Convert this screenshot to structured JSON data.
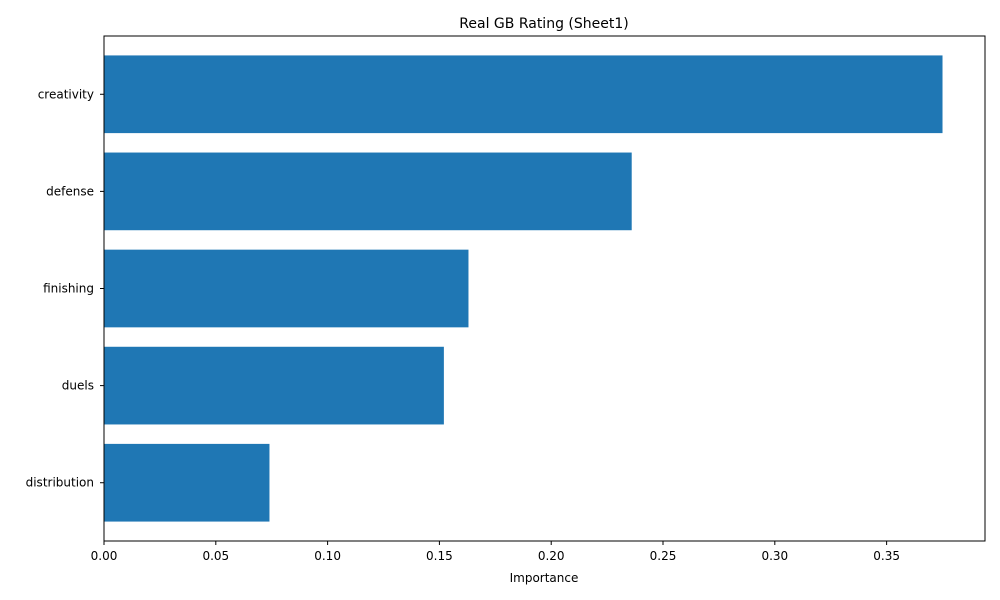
{
  "chart_data": {
    "type": "bar",
    "orientation": "horizontal",
    "title": "Real GB Rating (Sheet1)",
    "xlabel": "Importance",
    "ylabel": "",
    "categories": [
      "creativity",
      "defense",
      "finishing",
      "duels",
      "distribution"
    ],
    "values": [
      0.375,
      0.236,
      0.163,
      0.152,
      0.074
    ],
    "xlim": [
      0,
      0.394
    ],
    "xticks": [
      0.0,
      0.05,
      0.1,
      0.15,
      0.2,
      0.25,
      0.3,
      0.35
    ],
    "xtick_labels": [
      "0.00",
      "0.05",
      "0.10",
      "0.15",
      "0.20",
      "0.25",
      "0.30",
      "0.35"
    ],
    "grid": false,
    "bar_color": "#1f77b4"
  }
}
